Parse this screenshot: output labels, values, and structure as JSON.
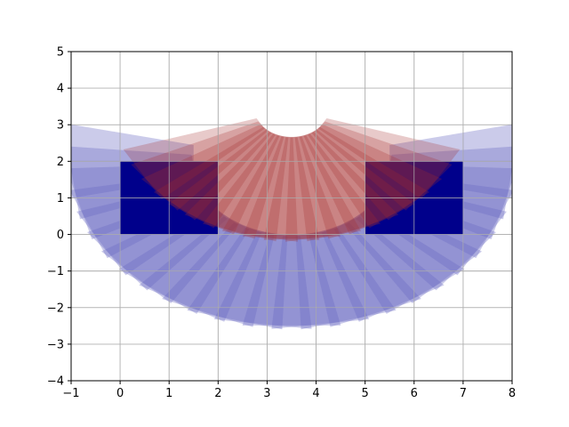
{
  "chart_data": {
    "type": "area",
    "title": "",
    "xlabel": "",
    "ylabel": "",
    "xlim": [
      -1,
      8
    ],
    "ylim": [
      -4,
      5
    ],
    "xticks": [
      -1,
      0,
      1,
      2,
      3,
      4,
      5,
      6,
      7,
      8
    ],
    "yticks": [
      -4,
      -3,
      -2,
      -1,
      0,
      1,
      2,
      3,
      4,
      5
    ],
    "grid": true,
    "colors": {
      "dark_blue": "#00008b",
      "light_blue": "#6b6bc2",
      "red": "#a52a2a"
    },
    "rectangles": [
      {
        "name": "left-block",
        "x0": 0,
        "x1": 2,
        "y0": 0,
        "y1": 2,
        "color": "#00008b"
      },
      {
        "name": "right-block",
        "x0": 5,
        "x1": 7,
        "y0": 0,
        "y1": 2,
        "color": "#00008b"
      }
    ],
    "rotated_squares": {
      "blue": {
        "center_x": 3.5,
        "center_y": 2.0,
        "inner_radius": 2.05,
        "outer_radius": 4.6,
        "angle_start_deg": 180,
        "angle_end_deg": 360,
        "count": 25,
        "color": "#6b6bc2",
        "opacity": 0.35
      },
      "red": {
        "center_x": 3.5,
        "center_y": 3.4,
        "inner_radius": 0.75,
        "outer_radius": 3.6,
        "angle_start_deg": 210,
        "angle_end_deg": 330,
        "count": 18,
        "color": "#a52a2a",
        "opacity": 0.25
      }
    }
  }
}
